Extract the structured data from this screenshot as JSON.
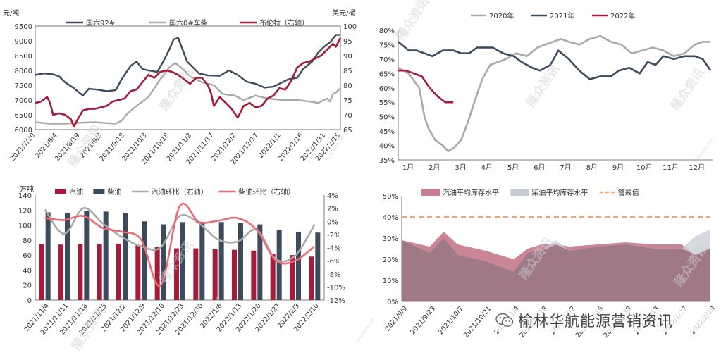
{
  "colors": {
    "navy": "#3d4a5c",
    "gray": "#a9a9a9",
    "crimson": "#a51c3b",
    "pink": "#c77f8f",
    "steel": "#c7ccd3",
    "orange": "#f4a46d",
    "axis": "#555555"
  },
  "watermark": {
    "logo": "隆众资讯",
    "site": "OilChem.net"
  },
  "brand": {
    "text": "榆林华航能源营销资讯",
    "icon": "wechat-icon"
  },
  "chart_data": [
    {
      "type": "line",
      "title": "",
      "y_unit_left": "元/吨",
      "y_unit_right": "美元/桶",
      "ylim": [
        6000,
        9500
      ],
      "ylim_right": [
        65,
        100
      ],
      "yticks": [
        6000,
        6500,
        7000,
        7500,
        8000,
        8500,
        9000,
        9500
      ],
      "yticks_right": [
        65,
        70,
        75,
        80,
        85,
        90,
        95,
        100
      ],
      "xlim": [
        0,
        205
      ],
      "x_ticks": [
        {
          "label": "2021/7/20",
          "x": 0
        },
        {
          "label": "2021/8/4",
          "x": 15
        },
        {
          "label": "2021/8/19",
          "x": 30
        },
        {
          "label": "2021/9/3",
          "x": 45
        },
        {
          "label": "2021/9/18",
          "x": 60
        },
        {
          "label": "2021/10/3",
          "x": 75
        },
        {
          "label": "2021/10/18",
          "x": 90
        },
        {
          "label": "2021/11/2",
          "x": 105
        },
        {
          "label": "2021/11/17",
          "x": 120
        },
        {
          "label": "2021/12/2",
          "x": 135
        },
        {
          "label": "2021/12/17",
          "x": 150
        },
        {
          "label": "2022/1/1",
          "x": 165
        },
        {
          "label": "2022/1/16",
          "x": 180
        },
        {
          "label": "2022/1/31",
          "x": 195
        },
        {
          "label": "2022/2/15",
          "x": 210
        }
      ],
      "series": [
        {
          "name": "国六92#",
          "axis": "left",
          "color": "#3d4a5c",
          "x": [
            0,
            6,
            12,
            16,
            20,
            26,
            32,
            36,
            42,
            48,
            54,
            58,
            64,
            68,
            72,
            76,
            82,
            86,
            90,
            93,
            96,
            99,
            102,
            106,
            110,
            116,
            124,
            130,
            136,
            142,
            148,
            154,
            160,
            166,
            170,
            176,
            180,
            186,
            190,
            194,
            198,
            202,
            205
          ],
          "y": [
            7850,
            7900,
            7870,
            7800,
            7600,
            7400,
            7150,
            7380,
            7350,
            7300,
            7330,
            7700,
            8150,
            8300,
            8050,
            8000,
            7950,
            8300,
            8700,
            9050,
            9100,
            8700,
            8300,
            8100,
            7900,
            7830,
            7820,
            8000,
            7850,
            7620,
            7550,
            7420,
            7450,
            7600,
            7700,
            7750,
            8050,
            8300,
            8600,
            8800,
            8950,
            9200,
            9200
          ]
        },
        {
          "name": "国六0#车柴",
          "axis": "left",
          "color": "#a9a9a9",
          "x": [
            0,
            10,
            20,
            30,
            40,
            48,
            54,
            58,
            62,
            68,
            76,
            84,
            90,
            94,
            98,
            104,
            112,
            120,
            126,
            134,
            140,
            148,
            156,
            166,
            176,
            184,
            190,
            194,
            196,
            198,
            200,
            202,
            205
          ],
          "y": [
            6250,
            6200,
            6200,
            6230,
            6250,
            6220,
            6200,
            6300,
            6550,
            6800,
            7100,
            7700,
            8100,
            8250,
            8100,
            7800,
            7600,
            7500,
            7200,
            7150,
            7000,
            7150,
            7050,
            7000,
            7000,
            6950,
            6900,
            7000,
            7050,
            6950,
            7200,
            7250,
            7400
          ]
        }
      ],
      "series_right": [
        {
          "name": "布伦特（右轴）",
          "axis": "right",
          "color": "#a51c3b",
          "x": [
            0,
            4,
            8,
            10,
            12,
            16,
            20,
            24,
            26,
            28,
            32,
            36,
            40,
            44,
            48,
            52,
            56,
            60,
            64,
            68,
            72,
            76,
            80,
            84,
            88,
            92,
            96,
            100,
            104,
            108,
            112,
            116,
            118,
            120,
            124,
            128,
            132,
            136,
            140,
            144,
            148,
            152,
            156,
            160,
            164,
            168,
            172,
            176,
            180,
            184,
            188,
            192,
            196,
            200,
            202,
            205
          ],
          "y": [
            74,
            74.5,
            76,
            74,
            70,
            70.5,
            70,
            68.5,
            66,
            68,
            71.5,
            72,
            72,
            72.5,
            73,
            74.5,
            75,
            75.5,
            78,
            78.5,
            81,
            83.5,
            82.5,
            84.5,
            85,
            84.5,
            83.5,
            82,
            80.5,
            82.5,
            82.5,
            80,
            77.5,
            73,
            76,
            74,
            72,
            69,
            73,
            74,
            72.5,
            73,
            75.5,
            76.5,
            79,
            78.5,
            81.5,
            86,
            87.5,
            88,
            89,
            90,
            92,
            94,
            93,
            96
          ]
        }
      ]
    },
    {
      "type": "line",
      "title": "",
      "ylim": [
        35,
        80
      ],
      "yticks": [
        35,
        40,
        45,
        50,
        55,
        60,
        65,
        70,
        75,
        80
      ],
      "ytick_suffix": "%",
      "xlim": [
        0,
        12
      ],
      "categories": [
        "1月",
        "2月",
        "3月",
        "4月",
        "5月",
        "6月",
        "7月",
        "8月",
        "9月",
        "10月",
        "11月",
        "12月"
      ],
      "series": [
        {
          "name": "2020年",
          "color": "#a9a9a9",
          "x": [
            0,
            0.4,
            0.8,
            1.0,
            1.15,
            1.4,
            1.7,
            1.9,
            2.1,
            2.4,
            2.65,
            2.9,
            3.2,
            3.5,
            3.8,
            4.1,
            4.5,
            4.9,
            5.3,
            5.6,
            5.9,
            6.2,
            6.5,
            6.9,
            7.3,
            7.7,
            8.1,
            8.5,
            8.9,
            9.3,
            9.7,
            10.1,
            10.5,
            10.9,
            11.3,
            11.6,
            11.9
          ],
          "y": [
            67,
            65,
            60,
            50,
            46,
            42,
            40,
            38,
            39,
            42,
            48,
            55,
            63,
            68,
            69,
            70,
            72,
            71,
            74,
            75,
            76,
            77,
            76,
            75,
            77,
            78,
            76,
            75,
            72,
            73,
            74,
            73,
            71,
            72,
            75,
            76,
            76
          ]
        },
        {
          "name": "2021年",
          "color": "#3d4a5c",
          "x": [
            0,
            0.4,
            0.7,
            1.0,
            1.3,
            1.7,
            2.1,
            2.4,
            2.7,
            3.0,
            3.3,
            3.6,
            4.0,
            4.4,
            4.7,
            5.1,
            5.4,
            5.8,
            6.1,
            6.5,
            6.9,
            7.3,
            7.7,
            8.1,
            8.4,
            8.8,
            9.2,
            9.5,
            9.8,
            10.1,
            10.5,
            10.9,
            11.3,
            11.6,
            11.9
          ],
          "y": [
            76,
            73,
            73,
            72,
            71,
            73,
            73,
            72,
            72,
            74,
            74,
            74,
            72,
            71,
            69,
            67,
            66,
            68,
            73,
            70,
            66,
            63,
            64,
            64,
            66,
            67,
            65,
            69,
            68,
            71,
            70,
            71,
            71,
            70,
            66
          ]
        },
        {
          "name": "2022年",
          "color": "#a51c3b",
          "x": [
            0,
            0.3,
            0.6,
            0.9,
            1.2,
            1.5,
            1.8,
            2.1
          ],
          "y": [
            66,
            66,
            65,
            64,
            60,
            57,
            55,
            55
          ]
        }
      ]
    },
    {
      "type": "bar",
      "title": "",
      "y_unit_left": "万吨",
      "ylim": [
        0,
        140
      ],
      "yticks": [
        0,
        20,
        40,
        60,
        80,
        100,
        120,
        140
      ],
      "ylim_right": [
        -12,
        4
      ],
      "yticks_right": [
        -12,
        -10,
        -8,
        -6,
        -4,
        -2,
        0,
        2,
        4
      ],
      "ytick_right_suffix": "%",
      "categories": [
        "2021/11/4",
        "2021/11/11",
        "2021/11/18",
        "2021/11/25",
        "2021/12/2",
        "2021/12/9",
        "2021/12/16",
        "2021/12/23",
        "2021/12/30",
        "2022/1/6",
        "2022/1/13",
        "2022/1/20",
        "2022/1/27",
        "2022/2/3",
        "2022/2/10"
      ],
      "series": [
        {
          "name": "汽油",
          "color": "#a51c3b",
          "values": [
            75,
            74,
            75,
            75,
            75,
            73,
            71,
            69,
            69,
            68,
            67,
            66,
            62,
            60,
            58
          ]
        },
        {
          "name": "柴油",
          "color": "#3d4a5c",
          "values": [
            117,
            116,
            119,
            118,
            116,
            105,
            101,
            104,
            104,
            104,
            103,
            101,
            94,
            91,
            90
          ]
        }
      ],
      "series_right": [
        {
          "name": "汽油环比（右轴）",
          "color": "#a9a9a9",
          "values": [
            1.8,
            -1.9,
            2.0,
            -0.3,
            -2.4,
            -3.8,
            -4.0,
            0.8,
            -0.3,
            -2.8,
            -3.1,
            -1.3,
            -5.8,
            -5.2,
            -0.5
          ]
        },
        {
          "name": "柴油环比（右轴）",
          "color": "#e86b77",
          "values": [
            0.5,
            0.2,
            0.8,
            -1.0,
            -1.6,
            -2.8,
            -9.8,
            2.3,
            -0.1,
            0.1,
            0.5,
            -1.3,
            -6.0,
            -6.0,
            -3.8
          ]
        }
      ]
    },
    {
      "type": "area",
      "title": "",
      "ylim": [
        0,
        50
      ],
      "yticks": [
        0,
        10,
        20,
        30,
        40,
        50
      ],
      "ytick_suffix": "%",
      "categories": [
        "2021/9/9",
        "2021/9/23",
        "2021/10/7",
        "2021/10/21",
        "2021/11/4",
        "2021/11/18",
        "2021/12/2",
        "2021/12/16",
        "2021/12/30",
        "2022/1/13",
        "2022/1/27",
        "2022/2/10"
      ],
      "xlim": [
        0,
        22
      ],
      "series": [
        {
          "name": "汽油平均库存水平",
          "color": "#c77f8f",
          "x": [
            0,
            2,
            3,
            4,
            6,
            8,
            9,
            10,
            11,
            12,
            14,
            16,
            18,
            20,
            21,
            22
          ],
          "y": [
            29,
            26,
            33,
            27,
            24,
            20,
            25,
            27,
            27,
            26,
            27,
            28,
            27,
            27,
            22,
            25
          ]
        },
        {
          "name": "柴油平均库存水平",
          "color": "#c7ccd3",
          "x": [
            0,
            2,
            3,
            4,
            6,
            8,
            9,
            10,
            11,
            12,
            14,
            16,
            18,
            20,
            21,
            22
          ],
          "y": [
            29,
            23,
            30,
            22,
            19,
            14,
            23,
            24,
            29,
            24,
            26,
            27,
            25,
            25,
            31,
            34
          ]
        }
      ],
      "threshold": {
        "name": "警戒值",
        "value": 40,
        "color": "#f4a46d"
      }
    }
  ]
}
